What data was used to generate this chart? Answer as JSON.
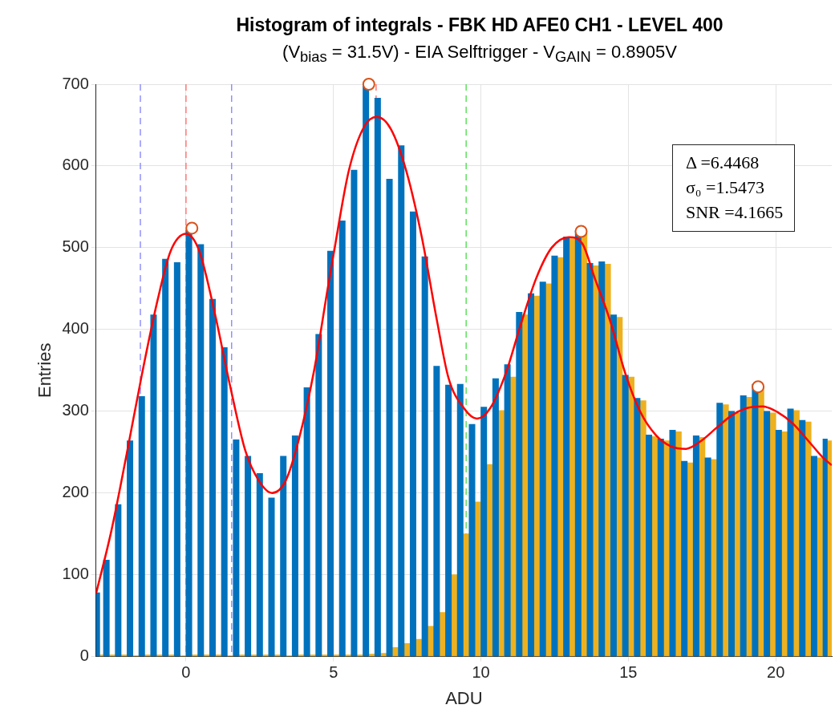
{
  "chart_data": {
    "type": "histogram",
    "title": "Histogram of integrals - FBK HD AFE0 CH1 - LEVEL 400",
    "subtitle": "(V$_{bias}$ = 31.5V) - EIA Selftrigger - V$_{GAIN}$ = 0.8905V",
    "xlabel": "ADU",
    "ylabel": "Entries",
    "annotations": [
      "Δ =6.4468",
      "σ₀ =1.5473",
      "SNR =4.1665"
    ],
    "bins": [
      -3.05,
      -2.8,
      -2.4,
      -2,
      -1.6,
      -1.2,
      -0.8,
      -0.4,
      0,
      0.4,
      0.8,
      1.2,
      1.6,
      2,
      2.4,
      2.8,
      3.2,
      3.6,
      4,
      4.4,
      4.8,
      5.2,
      5.6,
      6,
      6.4,
      6.8,
      7.2,
      7.6,
      8,
      8.4,
      8.8,
      9.2,
      9.6,
      10,
      10.4,
      10.8,
      11.2,
      11.6,
      12,
      12.4,
      12.8,
      13.2,
      13.6,
      14,
      14.4,
      14.8,
      15.2,
      15.6,
      16,
      16.4,
      16.8,
      17.2,
      17.6,
      18,
      18.4,
      18.8,
      19.2,
      19.6,
      20,
      20.4,
      20.8,
      21.2,
      21.6,
      21.9
    ],
    "series": [
      {
        "color": "#0072bd",
        "values": [
          78,
          118,
          186,
          264,
          318,
          418,
          486,
          482,
          522,
          504,
          437,
          378,
          265,
          245,
          224,
          194,
          245,
          270,
          329,
          394,
          496,
          533,
          595,
          698,
          683,
          584,
          625,
          544,
          489,
          355,
          332,
          333,
          284,
          305,
          340,
          357,
          421,
          444,
          458,
          490,
          513,
          521,
          481,
          483,
          418,
          344,
          316,
          271,
          266,
          277,
          239,
          270,
          243,
          310,
          300,
          319,
          333,
          300,
          277,
          303,
          289,
          245,
          266
        ]
      },
      {
        "color": "#edb120",
        "values": [
          2,
          2,
          2,
          1,
          2,
          2,
          2,
          1,
          2,
          2,
          2,
          1,
          2,
          2,
          2,
          2,
          1,
          2,
          2,
          2,
          2,
          2,
          2,
          3,
          4,
          11,
          16,
          21,
          37,
          54,
          100,
          150,
          189,
          235,
          301,
          342,
          418,
          441,
          456,
          488,
          511,
          518,
          478,
          480,
          415,
          342,
          313,
          269,
          264,
          275,
          237,
          268,
          241,
          308,
          298,
          317,
          330,
          298,
          275,
          301,
          287,
          243,
          264
        ]
      },
      {
        "type": "line",
        "color": "#ff0000",
        "x": [
          -3.05,
          -2.53,
          -2.01,
          -1.49,
          -0.97,
          -0.52,
          0,
          0.45,
          0.97,
          1.49,
          2.01,
          2.47,
          2.92,
          3.38,
          3.83,
          4.35,
          4.8,
          5.0,
          5.52,
          6.04,
          6.47,
          6.95,
          7.47,
          7.99,
          8.51,
          8.9,
          9.42,
          9.87,
          10.32,
          10.84,
          11.36,
          11.88,
          12.4,
          12.99,
          13.44,
          13.86,
          14.38,
          14.9,
          15.41,
          15.93,
          16.45,
          16.96,
          17.48,
          18.0,
          18.51,
          19.03,
          19.55,
          20.06,
          20.58,
          21.1,
          21.61,
          21.9
        ],
        "values": [
          77,
          154,
          248,
          346,
          435,
          496,
          517,
          496,
          421,
          332,
          252,
          215,
          200,
          215,
          266,
          351,
          449,
          491,
          594,
          648,
          660,
          645,
          594,
          514,
          411,
          341,
          304,
          291,
          304,
          346,
          407,
          463,
          500,
          513,
          505,
          463,
          411,
          346,
          299,
          271,
          257,
          254,
          264,
          280,
          295,
          304,
          306,
          299,
          285,
          264,
          243,
          234
        ]
      },
      {
        "type": "scatter",
        "color": "#d95319",
        "marker": "circle",
        "x": [
          0.2,
          6.2,
          13.4,
          19.4
        ],
        "values": [
          524,
          700,
          520,
          330
        ]
      }
    ],
    "xlim": [
      -3.05,
      21.9
    ],
    "ylim": [
      0,
      700
    ],
    "xticks": [
      0,
      5,
      10,
      15,
      20
    ],
    "yticks": [
      0,
      100,
      200,
      300,
      400,
      500,
      600,
      700
    ],
    "grid": true,
    "ref_lines": [
      {
        "axis": "x",
        "value": -1.5473,
        "color": "#8080ff",
        "line_style": "dashed"
      },
      {
        "axis": "x",
        "value": 1.5473,
        "color": "#8080ff",
        "line_style": "dashed"
      },
      {
        "axis": "x",
        "value": 0,
        "color": "#ff6666",
        "line_style": "dashed"
      },
      {
        "axis": "x",
        "value": 6.4468,
        "color": "#ff6666",
        "line_style": "dashed"
      },
      {
        "axis": "x",
        "value": 9.5,
        "color": "#44dd44",
        "line_style": "dashed"
      }
    ]
  }
}
